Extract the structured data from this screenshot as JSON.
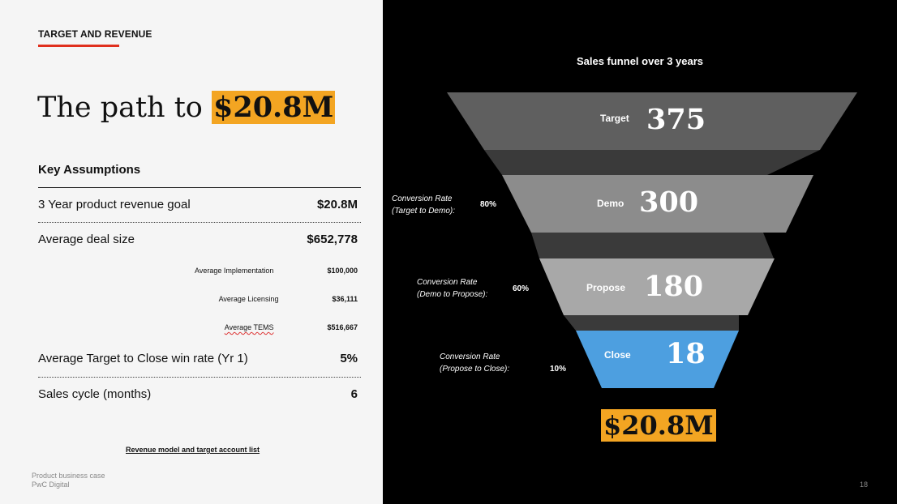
{
  "left": {
    "section_label": "TARGET AND REVENUE",
    "title_prefix": "The path to ",
    "title_highlight": "$20.8M",
    "key_assumptions_title": "Key Assumptions",
    "rows": [
      {
        "label": "3 Year product revenue goal",
        "value": "$20.8M"
      },
      {
        "label": "Average deal size",
        "value": "$652,778"
      },
      {
        "label": "Average Implementation",
        "value": "$100,000"
      },
      {
        "label": "Average Licensing",
        "value": "$36,111"
      },
      {
        "label": "Average TEMS",
        "value": "$516,667"
      },
      {
        "label": "Average Target to Close win rate (Yr 1)",
        "value": "5%"
      },
      {
        "label": "Sales cycle (months)",
        "value": "6"
      }
    ],
    "link_text": "Revenue model and target account list",
    "footer_line1": "Product business case",
    "footer_line2": "PwC Digital"
  },
  "right": {
    "funnel_title": "Sales funnel over 3 years",
    "stages": [
      {
        "name": "Target",
        "value": "375",
        "color": "#5f5f5f"
      },
      {
        "name": "Demo",
        "value": "300",
        "color": "#8c8c8c"
      },
      {
        "name": "Propose",
        "value": "180",
        "color": "#a8a8a8"
      },
      {
        "name": "Close",
        "value": "18",
        "color": "#4d9fe0"
      }
    ],
    "conversions": [
      {
        "line1": "Conversion Rate",
        "line2": "(Target to Demo):",
        "pct": "80%"
      },
      {
        "line1": "Conversion Rate",
        "line2": "(Demo to Propose):",
        "pct": "60%"
      },
      {
        "line1": "Conversion Rate",
        "line2": "(Propose to Close):",
        "pct": "10%"
      }
    ],
    "total": "$20.8M",
    "page_number": "18"
  },
  "colors": {
    "accent_red": "#e0301e",
    "highlight_orange": "#f3a522",
    "connector_dark": "#3a3a3a"
  }
}
